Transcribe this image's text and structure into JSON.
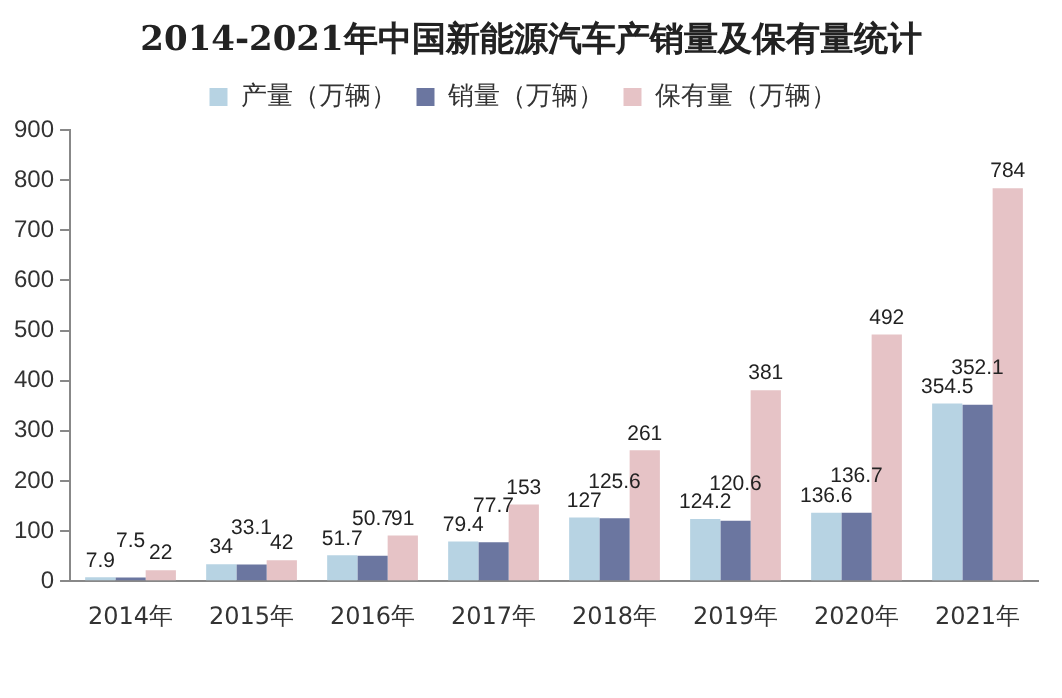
{
  "chart_data": {
    "type": "bar",
    "title": "2014-2021年中国新能源汽车产销量及保有量统计",
    "categories": [
      "2014年",
      "2015年",
      "2016年",
      "2017年",
      "2018年",
      "2019年",
      "2020年",
      "2021年"
    ],
    "series": [
      {
        "name": "产量（万辆）",
        "color": "#b7d3e3",
        "values": [
          7.9,
          34,
          51.7,
          79.4,
          127,
          124.2,
          136.6,
          354.5
        ]
      },
      {
        "name": "销量（万辆）",
        "color": "#6b76a0",
        "values": [
          7.5,
          33.1,
          50.7,
          77.7,
          125.6,
          120.6,
          136.7,
          352.1
        ]
      },
      {
        "name": "保有量（万辆）",
        "color": "#e6c3c6",
        "values": [
          22,
          42,
          91,
          153,
          261,
          381,
          492,
          784
        ]
      }
    ],
    "ylim": [
      0,
      900
    ],
    "yticks": [
      0,
      100,
      200,
      300,
      400,
      500,
      600,
      700,
      800,
      900
    ],
    "grid": false,
    "legend": "top",
    "data_labels": true
  }
}
